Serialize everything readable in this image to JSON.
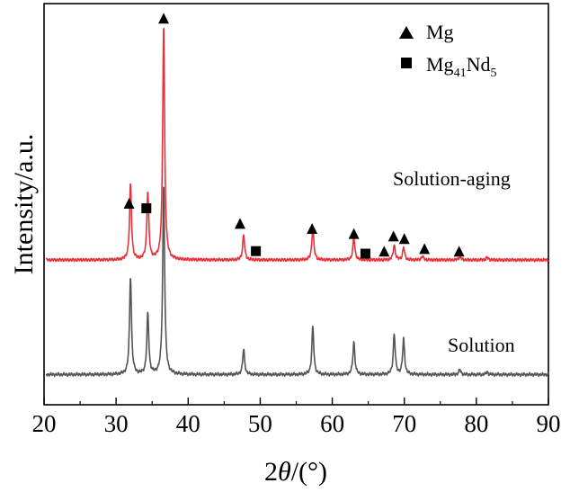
{
  "chart_data": {
    "type": "line",
    "xlabel_prefix": "2",
    "xlabel_theta": "θ",
    "xlabel_suffix": "/(°)",
    "ylabel": "Intensity/a.u.",
    "xlim": [
      20,
      90
    ],
    "xticks": [
      20,
      30,
      40,
      50,
      60,
      70,
      80,
      90
    ],
    "y_ticks_shown": false,
    "grid": false,
    "legend": {
      "placement": "top-right",
      "entries": [
        {
          "marker": "triangle",
          "label": "Mg",
          "label_main": "Mg",
          "label_sub1": "",
          "label_mid": "",
          "label_sub2": ""
        },
        {
          "marker": "square",
          "label": "Mg41Nd5",
          "label_main": "Mg",
          "label_sub1": "41",
          "label_mid": "Nd",
          "label_sub2": "5"
        }
      ]
    },
    "series": [
      {
        "name": "Solution-aging",
        "color": "#e8323a",
        "baseline": 0.575,
        "peaks": [
          {
            "x": 32.0,
            "h": 0.3
          },
          {
            "x": 34.4,
            "h": 0.27
          },
          {
            "x": 36.6,
            "h": 0.93
          },
          {
            "x": 47.7,
            "h": 0.1
          },
          {
            "x": 57.3,
            "h": 0.13
          },
          {
            "x": 63.0,
            "h": 0.09
          },
          {
            "x": 68.6,
            "h": 0.06
          },
          {
            "x": 69.9,
            "h": 0.05
          },
          {
            "x": 72.5,
            "h": 0.015
          },
          {
            "x": 77.7,
            "h": 0.015
          },
          {
            "x": 81.5,
            "h": 0.01
          }
        ]
      },
      {
        "name": "Solution",
        "color": "#555555",
        "baseline": 0.12,
        "peaks": [
          {
            "x": 32.0,
            "h": 0.39
          },
          {
            "x": 34.4,
            "h": 0.24
          },
          {
            "x": 36.6,
            "h": 0.75
          },
          {
            "x": 47.7,
            "h": 0.1
          },
          {
            "x": 57.3,
            "h": 0.19
          },
          {
            "x": 63.0,
            "h": 0.13
          },
          {
            "x": 68.6,
            "h": 0.16
          },
          {
            "x": 69.9,
            "h": 0.14
          },
          {
            "x": 77.7,
            "h": 0.02
          },
          {
            "x": 81.5,
            "h": 0.01
          }
        ]
      }
    ],
    "annotations": [
      {
        "marker": "triangle",
        "x": 31.8,
        "y": 0.8
      },
      {
        "marker": "square",
        "x": 34.2,
        "y": 0.78
      },
      {
        "marker": "triangle",
        "x": 36.6,
        "y": 1.535
      },
      {
        "marker": "triangle",
        "x": 47.2,
        "y": 0.72
      },
      {
        "marker": "square",
        "x": 49.4,
        "y": 0.61
      },
      {
        "marker": "triangle",
        "x": 57.2,
        "y": 0.7
      },
      {
        "marker": "triangle",
        "x": 63.0,
        "y": 0.68
      },
      {
        "marker": "square",
        "x": 64.6,
        "y": 0.6
      },
      {
        "marker": "triangle",
        "x": 67.2,
        "y": 0.61
      },
      {
        "marker": "triangle",
        "x": 68.5,
        "y": 0.67
      },
      {
        "marker": "triangle",
        "x": 70.0,
        "y": 0.66
      },
      {
        "marker": "triangle",
        "x": 72.8,
        "y": 0.62
      },
      {
        "marker": "triangle",
        "x": 77.6,
        "y": 0.61
      }
    ]
  }
}
